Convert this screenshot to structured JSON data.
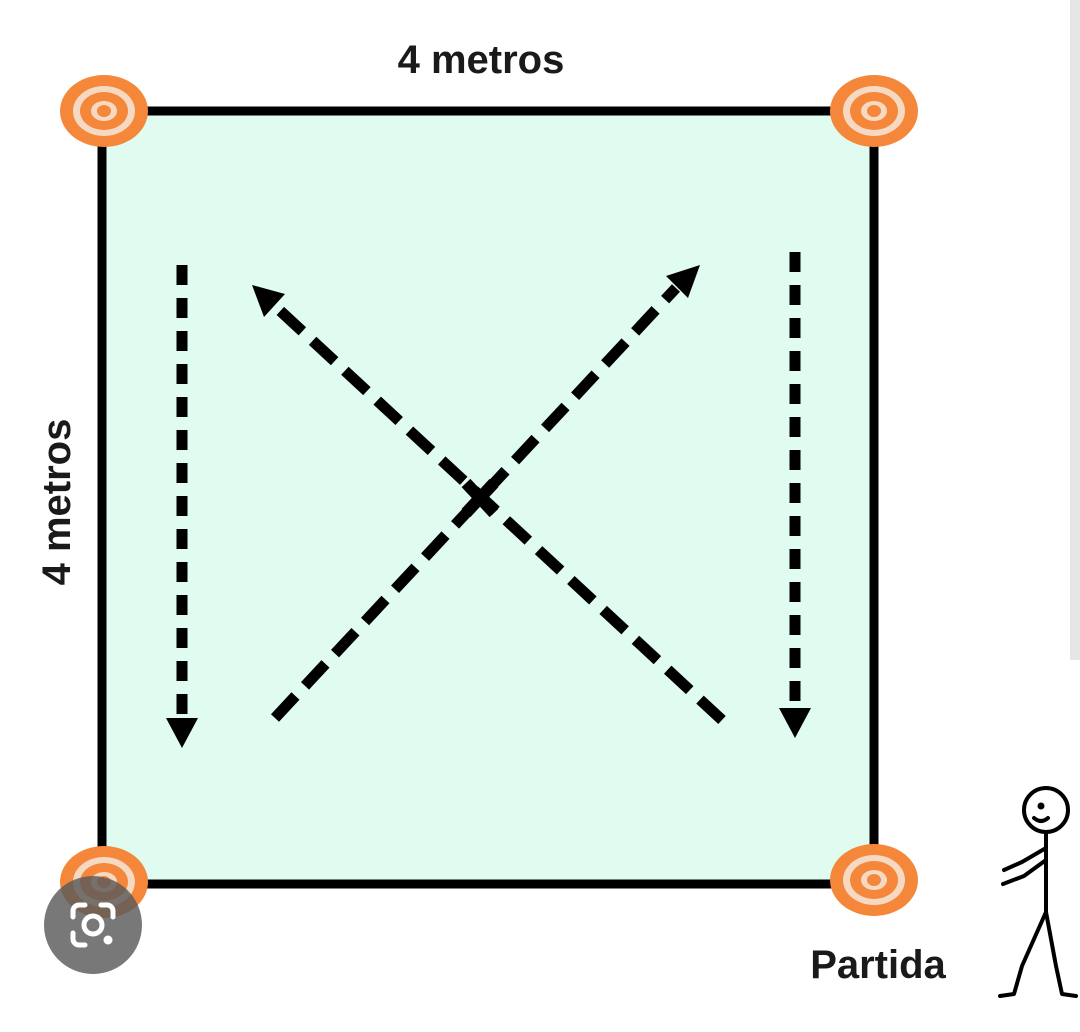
{
  "diagram": {
    "top_label": "4 metros",
    "side_label": "4 metros",
    "start_label": "Partida"
  },
  "colors": {
    "field_fill": "#e0fbef",
    "border": "#000000",
    "cone_orange": "#f4873a",
    "cone_light": "#f6d9c3",
    "arrow": "#000000"
  },
  "icons": {
    "corner_markers": "target-cone-icon",
    "person": "stick-figure-icon",
    "lens": "google-lens-icon"
  }
}
